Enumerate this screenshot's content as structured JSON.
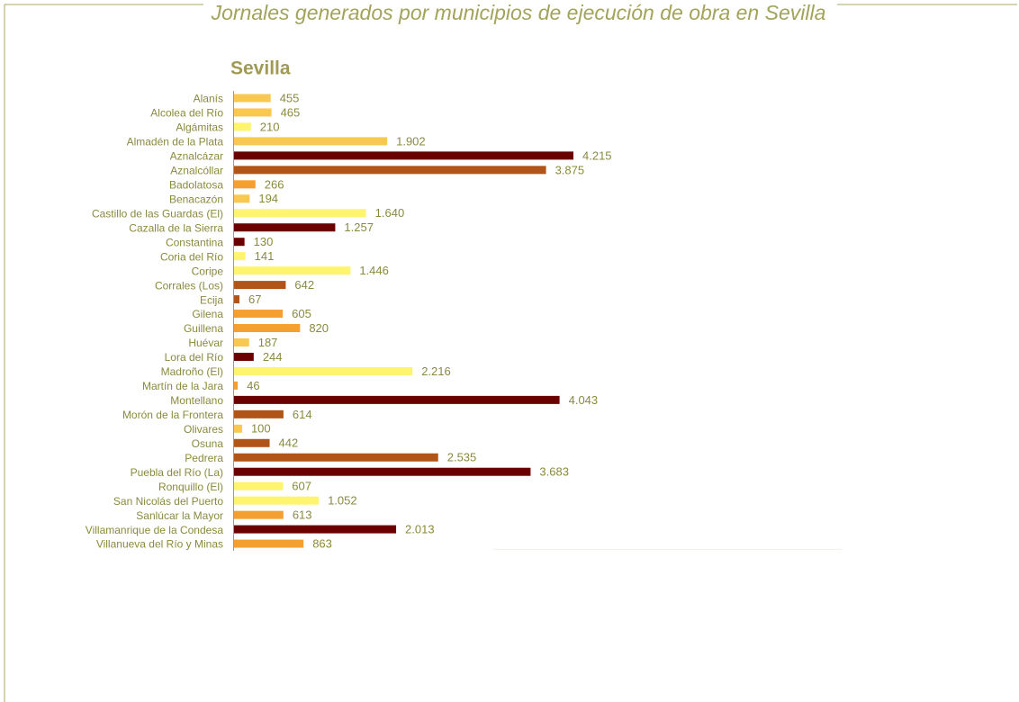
{
  "chart_data": {
    "type": "barh",
    "title": "Jornales generados por municipios de ejecución de obra en Sevilla",
    "subtitle": "Sevilla",
    "categories": [
      "Alanís",
      "Alcolea del Río",
      "Algámitas",
      "Almadén de la Plata",
      "Aznalcázar",
      "Aznalcóllar",
      "Badolatosa",
      "Benacazón",
      "Castillo de las Guardas (El)",
      "Cazalla de la Sierra",
      "Constantina",
      "Coria del Río",
      "Coripe",
      "Corrales (Los)",
      "Ecija",
      "Gilena",
      "Guillena",
      "Huévar",
      "Lora del Río",
      "Madroño (El)",
      "Martín de la Jara",
      "Montellano",
      "Morón de la Frontera",
      "Olivares",
      "Osuna",
      "Pedrera",
      "Puebla del Río (La)",
      "Ronquillo (El)",
      "San Nicolás del Puerto",
      "Sanlúcar la Mayor",
      "Villamanrique de la Condesa",
      "Villanueva del Río y Minas"
    ],
    "values": [
      455,
      465,
      210,
      1902,
      4215,
      3875,
      266,
      194,
      1640,
      1257,
      130,
      141,
      1446,
      642,
      67,
      605,
      820,
      187,
      244,
      2216,
      46,
      4043,
      614,
      100,
      442,
      2535,
      3683,
      607,
      1052,
      613,
      2013,
      863
    ],
    "value_labels": [
      "455",
      "465",
      "210",
      "1.902",
      "4.215",
      "3.875",
      "266",
      "194",
      "1.640",
      "1.257",
      "130",
      "141",
      "1.446",
      "642",
      "67",
      "605",
      "820",
      "187",
      "244",
      "2.216",
      "46",
      "4.043",
      "614",
      "100",
      "442",
      "2.535",
      "3.683",
      "607",
      "1.052",
      "613",
      "2.013",
      "863"
    ],
    "colors": [
      "#f9c850",
      "#f9c850",
      "#fff46e",
      "#f9c850",
      "#6b0000",
      "#b05418",
      "#f4a030",
      "#f9c850",
      "#fff46e",
      "#6b0000",
      "#6b0000",
      "#fff46e",
      "#fff46e",
      "#b05418",
      "#b05418",
      "#f4a030",
      "#f4a030",
      "#f9c850",
      "#6b0000",
      "#fff46e",
      "#f4a030",
      "#6b0000",
      "#b05418",
      "#f9c850",
      "#b05418",
      "#b05418",
      "#6b0000",
      "#fff46e",
      "#fff46e",
      "#f4a030",
      "#6b0000",
      "#f4a030"
    ]
  }
}
